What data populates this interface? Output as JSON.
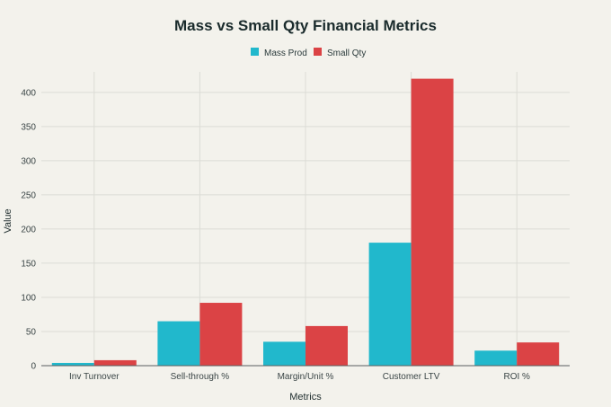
{
  "chart_data": {
    "type": "bar",
    "title": "Mass vs Small Qty Financial Metrics",
    "xlabel": "Metrics",
    "ylabel": "Value",
    "categories": [
      "Inv Turnover",
      "Sell-through %",
      "Margin/Unit %",
      "Customer LTV",
      "ROI %"
    ],
    "series": [
      {
        "name": "Mass Prod",
        "color": "#21b8cc",
        "values": [
          4,
          65,
          35,
          180,
          22
        ]
      },
      {
        "name": "Small Qty",
        "color": "#db4345",
        "values": [
          8,
          92,
          58,
          420,
          34
        ]
      }
    ],
    "ylim": [
      0,
      430
    ],
    "yticks": [
      0,
      50,
      100,
      150,
      200,
      250,
      300,
      350,
      400
    ],
    "grid": true,
    "legend_position": "top-center"
  }
}
